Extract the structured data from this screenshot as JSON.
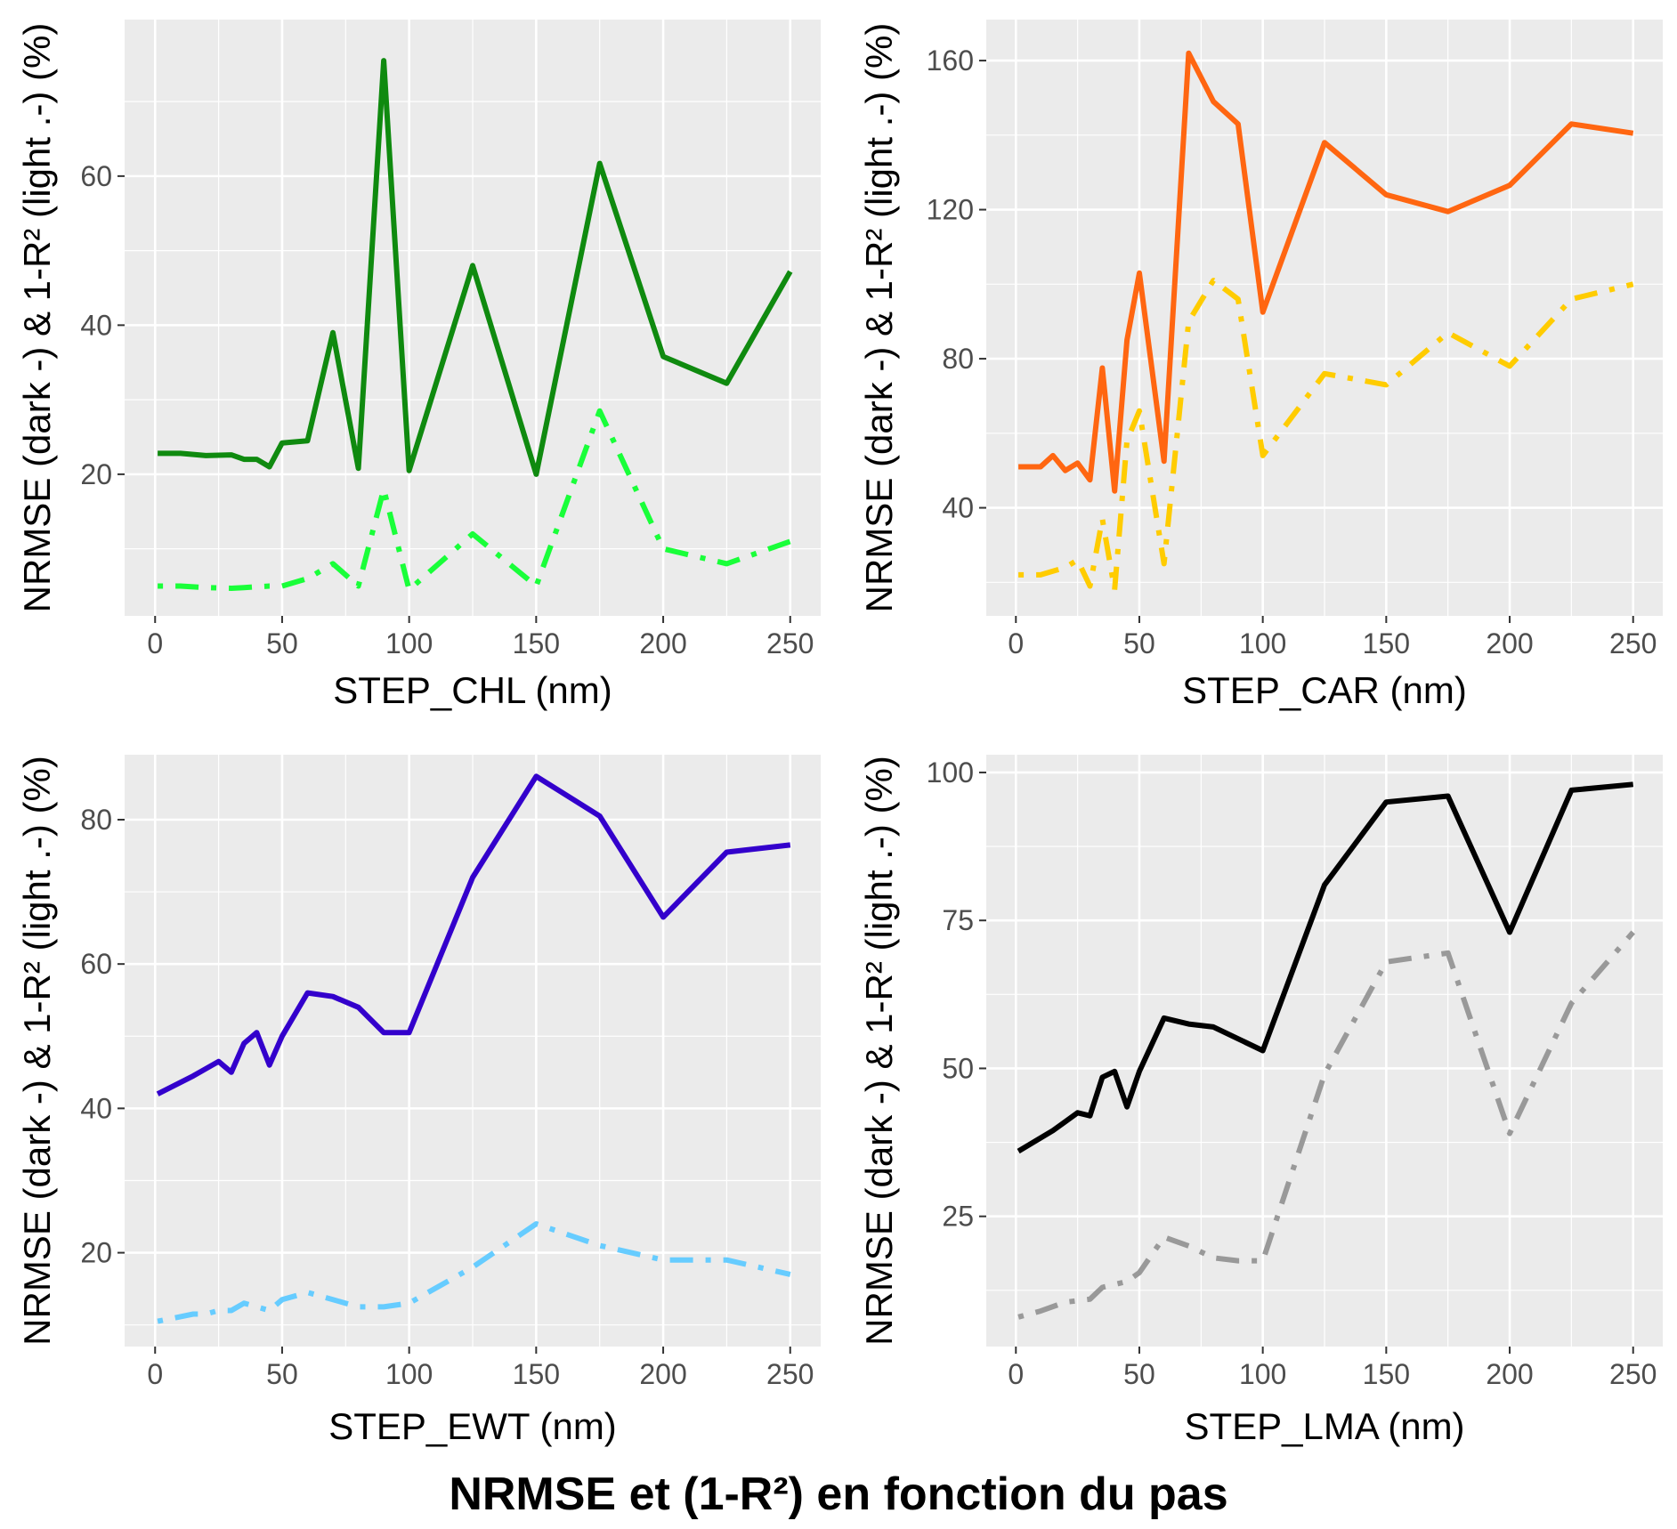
{
  "figure": {
    "title": "NRMSE et (1-R²) en fonction du pas"
  },
  "chart_data": [
    {
      "type": "line",
      "xlabel": "STEP_CHL (nm)",
      "ylabel": "NRMSE (dark -) & 1-R² (light .-) (%)",
      "xlim": [
        -12,
        262
      ],
      "ylim": [
        1,
        81
      ],
      "x_ticks": [
        0,
        50,
        100,
        150,
        200,
        250
      ],
      "y_ticks": [
        20,
        40,
        60
      ],
      "grid": true,
      "series": [
        {
          "role": "nrmse",
          "color": "#0f8a0f",
          "dash": "solid",
          "x": [
            1,
            10,
            20,
            30,
            35,
            40,
            45,
            50,
            60,
            70,
            80,
            90,
            100,
            125,
            150,
            175,
            200,
            225,
            250
          ],
          "y": [
            22.8,
            22.8,
            22.5,
            22.6,
            22,
            22,
            21,
            24.2,
            24.5,
            39,
            20.8,
            75.5,
            20.5,
            48,
            20,
            61.7,
            35.8,
            32.2,
            47.2
          ]
        },
        {
          "role": "one_minus_r2",
          "color": "#19ff39",
          "dash": "dotdash",
          "x": [
            1,
            10,
            20,
            30,
            35,
            40,
            45,
            50,
            60,
            70,
            80,
            90,
            100,
            125,
            150,
            175,
            200,
            225,
            250
          ],
          "y": [
            5,
            5,
            4.8,
            4.7,
            4.8,
            4.9,
            5,
            5,
            6,
            8,
            5,
            18,
            4.5,
            12,
            5,
            28.5,
            10,
            8,
            11
          ]
        }
      ]
    },
    {
      "type": "line",
      "xlabel": "STEP_CAR (nm)",
      "ylabel": "NRMSE (dark -) & 1-R² (light .-) (%)",
      "xlim": [
        -12,
        262
      ],
      "ylim": [
        11,
        171
      ],
      "x_ticks": [
        0,
        50,
        100,
        150,
        200,
        250
      ],
      "y_ticks": [
        40,
        80,
        120,
        160
      ],
      "grid": true,
      "series": [
        {
          "role": "nrmse",
          "color": "#ff6611",
          "dash": "solid",
          "x": [
            1,
            10,
            15,
            20,
            25,
            30,
            35,
            40,
            45,
            50,
            60,
            70,
            80,
            90,
            100,
            125,
            150,
            175,
            200,
            225,
            250
          ],
          "y": [
            51,
            51,
            54,
            50,
            52,
            47.5,
            77.5,
            44.5,
            85,
            103,
            52.5,
            162,
            149,
            143,
            92.5,
            138,
            124,
            119.5,
            126.5,
            143,
            140.5
          ]
        },
        {
          "role": "one_minus_r2",
          "color": "#ffcc00",
          "dash": "dotdash",
          "x": [
            1,
            10,
            20,
            25,
            30,
            35,
            40,
            45,
            50,
            60,
            70,
            80,
            90,
            100,
            125,
            150,
            175,
            200,
            225,
            250
          ],
          "y": [
            22,
            22,
            24,
            26,
            19,
            37,
            18,
            58,
            66,
            25,
            90,
            101,
            96,
            54,
            76,
            73,
            87,
            78,
            96,
            100
          ]
        }
      ]
    },
    {
      "type": "line",
      "xlabel": "STEP_EWT (nm)",
      "ylabel": "NRMSE (dark -) & 1-R² (light .-) (%)",
      "xlim": [
        -12,
        262
      ],
      "ylim": [
        7,
        89
      ],
      "x_ticks": [
        0,
        50,
        100,
        150,
        200,
        250
      ],
      "y_ticks": [
        20,
        40,
        60,
        80
      ],
      "grid": true,
      "series": [
        {
          "role": "nrmse",
          "color": "#3300cc",
          "dash": "solid",
          "x": [
            1,
            15,
            20,
            25,
            30,
            35,
            40,
            45,
            50,
            60,
            70,
            80,
            90,
            100,
            125,
            150,
            175,
            200,
            225,
            250
          ],
          "y": [
            42,
            44.5,
            45.5,
            46.5,
            45,
            49,
            50.5,
            46,
            50,
            56,
            55.5,
            54,
            50.5,
            50.5,
            72,
            86,
            80.5,
            66.5,
            75.5,
            76.5
          ]
        },
        {
          "role": "one_minus_r2",
          "color": "#66ccff",
          "dash": "dotdash",
          "x": [
            1,
            15,
            20,
            25,
            30,
            35,
            40,
            45,
            50,
            60,
            70,
            80,
            90,
            100,
            125,
            150,
            175,
            200,
            225,
            250
          ],
          "y": [
            10.5,
            11.5,
            11.5,
            12,
            12,
            13,
            12.5,
            12,
            13.5,
            14.5,
            13.5,
            12.5,
            12.5,
            13,
            18,
            24,
            21,
            19,
            19,
            17
          ]
        }
      ]
    },
    {
      "type": "line",
      "xlabel": "STEP_LMA (nm)",
      "ylabel": "NRMSE (dark -) & 1-R² (light .-) (%)",
      "xlim": [
        -12,
        262
      ],
      "ylim": [
        3,
        103
      ],
      "x_ticks": [
        0,
        50,
        100,
        150,
        200,
        250
      ],
      "y_ticks": [
        25,
        50,
        75,
        100
      ],
      "grid": true,
      "series": [
        {
          "role": "nrmse",
          "color": "#000000",
          "dash": "solid",
          "x": [
            1,
            15,
            20,
            25,
            30,
            35,
            40,
            45,
            50,
            60,
            70,
            80,
            90,
            100,
            125,
            150,
            175,
            200,
            225,
            250
          ],
          "y": [
            36,
            39.5,
            41,
            42.5,
            42,
            48.5,
            49.5,
            43.5,
            49.5,
            58.5,
            57.5,
            57,
            55,
            53,
            81,
            95,
            96,
            73,
            97,
            98
          ]
        },
        {
          "role": "one_minus_r2",
          "color": "#999999",
          "dash": "dotdash",
          "x": [
            1,
            10,
            20,
            30,
            35,
            40,
            45,
            50,
            60,
            70,
            80,
            90,
            100,
            125,
            150,
            175,
            200,
            225,
            250
          ],
          "y": [
            8,
            9,
            10.5,
            11,
            13,
            13.5,
            14,
            15.5,
            21.5,
            20,
            18,
            17.5,
            17.5,
            49,
            68,
            69.5,
            39,
            61,
            73
          ]
        }
      ]
    }
  ]
}
